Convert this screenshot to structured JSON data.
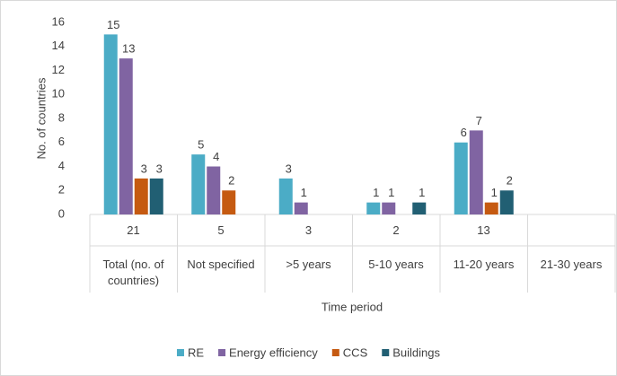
{
  "chart_data": {
    "type": "bar",
    "categories": [
      "Total (no. of countries)",
      "Not specified",
      ">5 years",
      "5-10 years",
      "11-20 years",
      "21-30 years"
    ],
    "category_counts": [
      21,
      5,
      3,
      2,
      13,
      null
    ],
    "series": [
      {
        "name": "RE",
        "color": "#4bacc6",
        "values": [
          15,
          5,
          3,
          1,
          6,
          null
        ]
      },
      {
        "name": "Energy efficiency",
        "color": "#8064a2",
        "values": [
          13,
          4,
          1,
          1,
          7,
          null
        ]
      },
      {
        "name": "CCS",
        "color": "#c55a11",
        "values": [
          3,
          2,
          null,
          null,
          1,
          null
        ]
      },
      {
        "name": "Buildings",
        "color": "#215f73",
        "values": [
          3,
          null,
          null,
          1,
          2,
          null
        ]
      }
    ],
    "y_label": "No. of countries",
    "x_label": "Time period",
    "ylim": [
      0,
      16
    ],
    "yticks": [
      0,
      2,
      4,
      6,
      8,
      10,
      12,
      14,
      16
    ],
    "grid": false,
    "legend": "bottom"
  }
}
